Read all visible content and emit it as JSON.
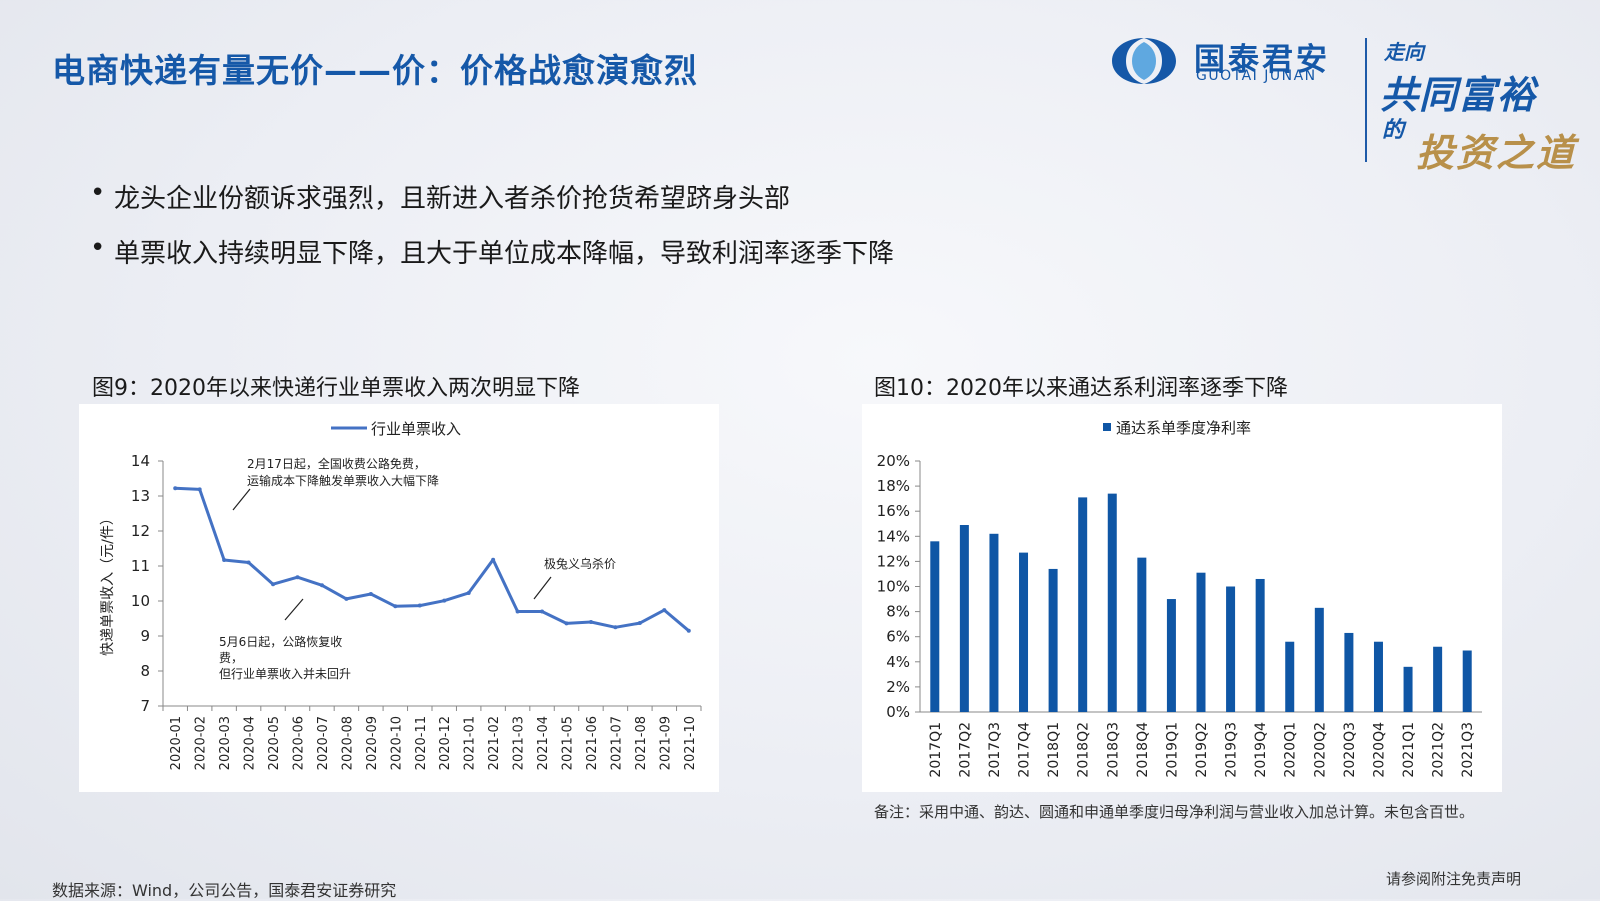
{
  "page": {
    "title": "电商快递有量无价——价：价格战愈演愈烈",
    "bullets": [
      "龙头企业份额诉求强烈，且新进入者杀价抢货希望跻身头部",
      "单票收入持续明显下降，且大于单位成本降幅，导致利润率逐季下降"
    ],
    "logo": {
      "cn": "国泰君安",
      "en": "GUOTAI JUNAN",
      "slogan": [
        "走向",
        "共同富裕",
        "的",
        "投资之道"
      ]
    },
    "figure9_caption": "图9：2020年以来快递行业单票收入两次明显下降",
    "figure10_caption": "图10：2020年以来通达系利润率逐季下降",
    "note": "备注：采用中通、韵达、圆通和申通单季度归母净利润与营业收入加总计算。未包含百世。",
    "source": "数据来源：Wind，公司公告，国泰君安证券研究",
    "disclaimer": "请参阅附注免责声明",
    "colors": {
      "accent": "#1558a8",
      "line": "#4472c4",
      "bar": "#0f56a5",
      "gold": "#b8904a"
    }
  },
  "chart_data": [
    {
      "type": "line",
      "legend": "行业单票收入",
      "legend_position": "top",
      "ylabel": "快递单票收入（元/件）",
      "ylim": [
        7,
        14
      ],
      "yticks": [
        "7",
        "8",
        "9",
        "10",
        "11",
        "12",
        "13",
        "14"
      ],
      "grid": false,
      "x": [
        "2020-01",
        "2020-02",
        "2020-03",
        "2020-04",
        "2020-05",
        "2020-06",
        "2020-07",
        "2020-08",
        "2020-09",
        "2020-10",
        "2020-11",
        "2020-12",
        "2021-01",
        "2021-02",
        "2021-03",
        "2021-04",
        "2021-05",
        "2021-06",
        "2021-07",
        "2021-08",
        "2021-09",
        "2021-10"
      ],
      "values": [
        13.22,
        13.19,
        11.17,
        11.1,
        10.48,
        10.68,
        10.45,
        10.06,
        10.2,
        9.85,
        9.87,
        10.01,
        10.23,
        11.18,
        9.7,
        9.7,
        9.36,
        9.4,
        9.25,
        9.37,
        9.74,
        9.15
      ],
      "annotations": [
        {
          "lines": [
            "2月17日起，全国收费公路免费，",
            "运输成本下降触发单票收入大幅下降"
          ]
        },
        {
          "lines": [
            "5月6日起，公路恢复收",
            "费，",
            "但行业单票收入并未回升"
          ]
        },
        {
          "lines": [
            "极兔义乌杀价"
          ]
        }
      ]
    },
    {
      "type": "bar",
      "legend": "通达系单季度净利率",
      "legend_position": "top",
      "ylim": [
        0,
        20
      ],
      "yticks": [
        "0%",
        "2%",
        "4%",
        "6%",
        "8%",
        "10%",
        "12%",
        "14%",
        "16%",
        "18%",
        "20%"
      ],
      "grid": false,
      "categories": [
        "2017Q1",
        "2017Q2",
        "2017Q3",
        "2017Q4",
        "2018Q1",
        "2018Q2",
        "2018Q3",
        "2018Q4",
        "2019Q1",
        "2019Q2",
        "2019Q3",
        "2019Q4",
        "2020Q1",
        "2020Q2",
        "2020Q3",
        "2020Q4",
        "2021Q1",
        "2021Q2",
        "2021Q3"
      ],
      "values": [
        13.6,
        14.9,
        14.2,
        12.7,
        11.4,
        17.1,
        17.4,
        12.3,
        9.0,
        11.1,
        10.0,
        10.6,
        5.6,
        8.3,
        6.3,
        5.6,
        3.6,
        5.2,
        4.9
      ]
    }
  ]
}
